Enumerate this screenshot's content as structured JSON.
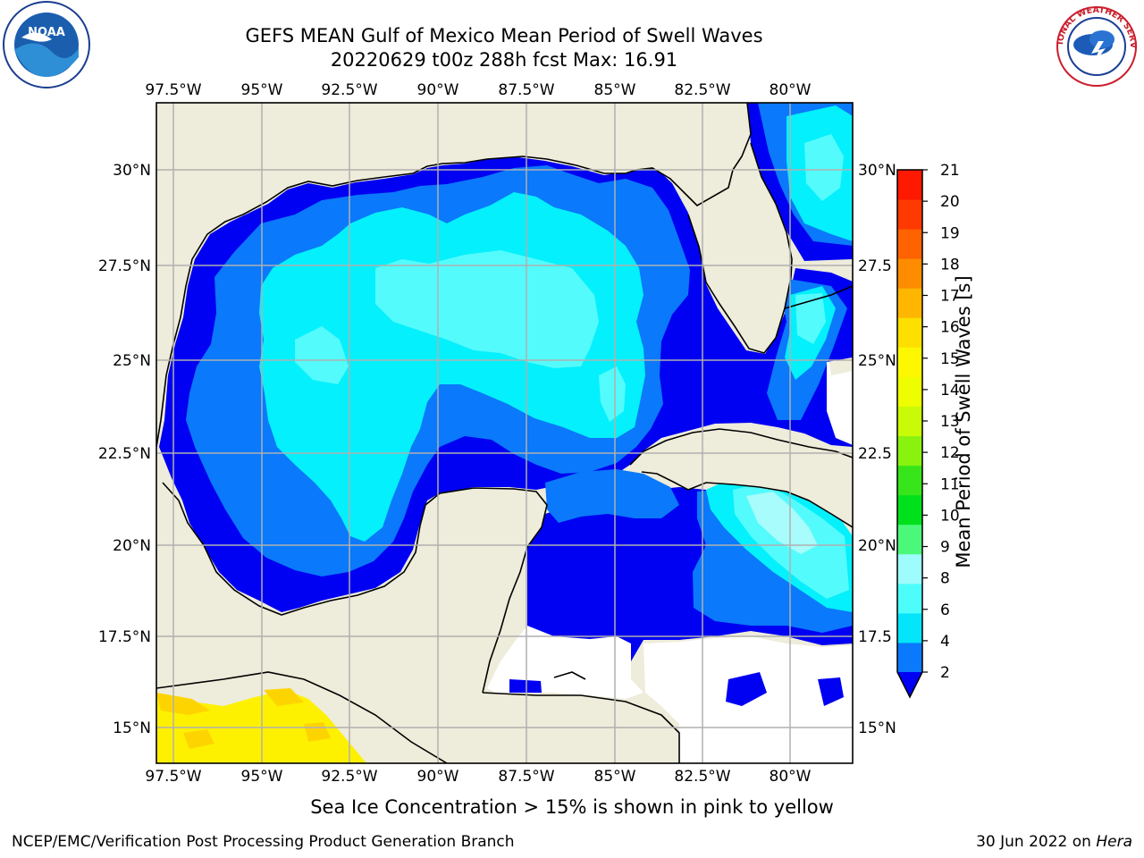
{
  "title": {
    "line1": "GEFS MEAN Gulf of Mexico Mean Period of Swell Waves",
    "line2": "20220629 t00z 288h fcst   Max: 16.91"
  },
  "map": {
    "lon_labels": [
      "97.5°W",
      "95°W",
      "92.5°W",
      "90°W",
      "87.5°W",
      "85°W",
      "82.5°W",
      "80°W"
    ],
    "lat_labels_left": [
      "30°N",
      "27.5°N",
      "25°N",
      "22.5°N",
      "20°N",
      "17.5°N",
      "15°N"
    ],
    "lat_labels_right": [
      "30°N",
      "27.5",
      "25°N",
      "22.5",
      "20°N",
      "17.5",
      "15°N"
    ],
    "lon_range": [
      -98,
      -78.2
    ],
    "lat_range": [
      14,
      31.6
    ],
    "colors": {
      "land": "#eeecda",
      "ocean_masked": "#ffffff",
      "coast": "#000000",
      "grid": "#b0b0b0"
    }
  },
  "colorbar": {
    "label": "Mean Period of Swell Waves [s]",
    "tick_labels": [
      "2",
      "4",
      "6",
      "8",
      "9",
      "10",
      "11",
      "12",
      "13",
      "14",
      "15",
      "16",
      "17",
      "18",
      "19",
      "20",
      "21"
    ],
    "colors": [
      "#0a79fb",
      "#04e4fb",
      "#4dfdfc",
      "#9efdfc",
      "#4bf97a",
      "#00e11c",
      "#37e51a",
      "#89f20f",
      "#c9fa07",
      "#eefd00",
      "#fdf800",
      "#fde000",
      "#feb600",
      "#fe8c00",
      "#fe6300",
      "#fe3a00",
      "#fe1900"
    ],
    "extend_color": "#0000f4"
  },
  "field_colors": {
    "level_2_4_dark": "#0000f2",
    "level_4_6": "#0a79fb",
    "level_6_8": "#04f0fc",
    "level_8_9": "#54fbfc",
    "level_9_10": "#a8fcfc",
    "ice_yellow": "#fef100",
    "ice_orange": "#fed400"
  },
  "note": "Sea Ice Concentration > 15% is shown in pink to yellow",
  "footer": {
    "left": "NCEP/EMC/Verification Post Processing Product Generation Branch",
    "right_date": "30 Jun 2022 on",
    "right_host": "Hera"
  },
  "logos": {
    "noaa": "NOAA",
    "nws": "NATIONAL WEATHER SERVICE"
  }
}
